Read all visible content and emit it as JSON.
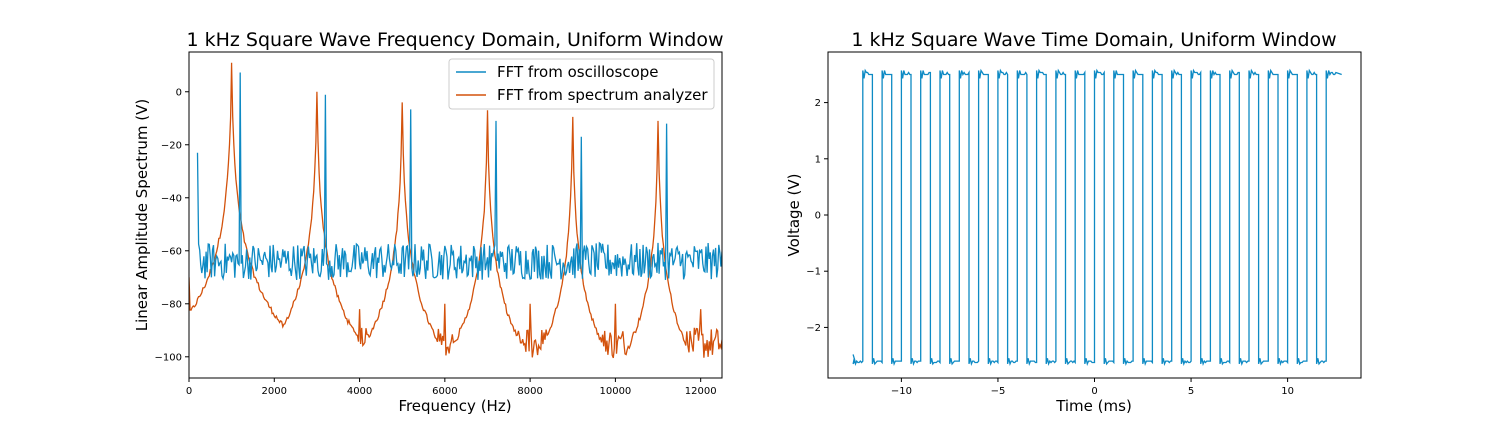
{
  "chart_data": [
    {
      "type": "line",
      "title": "1 kHz Square Wave Frequency Domain, Uniform Window",
      "xlabel": "Frequency (Hz)",
      "ylabel": "Linear Amplitude Spectrum (V)",
      "xlim": [
        0,
        12500
      ],
      "ylim": [
        -108,
        15
      ],
      "xticks": [
        0,
        2000,
        4000,
        6000,
        8000,
        10000,
        12000
      ],
      "yticks": [
        -100,
        -80,
        -60,
        -40,
        -20,
        0
      ],
      "grid": false,
      "legend_placement": "top-right",
      "series": [
        {
          "name": "FFT from oscilloscope",
          "color": "#0e8ac4",
          "noise_floor": -64,
          "x_start": 200,
          "start_value": -23,
          "peaks": [
            {
              "x": 1200,
              "y": 7
            },
            {
              "x": 3200,
              "y": -2
            },
            {
              "x": 5200,
              "y": -7
            },
            {
              "x": 7200,
              "y": -11
            },
            {
              "x": 9200,
              "y": -17
            },
            {
              "x": 11200,
              "y": -12
            }
          ]
        },
        {
          "name": "FFT from spectrum analyzer",
          "color": "#d3520c",
          "noise_floor": -95,
          "x_start": 0,
          "start_value": -70,
          "peaks": [
            {
              "x": 1000,
              "y": 10
            },
            {
              "x": 3000,
              "y": 0
            },
            {
              "x": 5000,
              "y": -4
            },
            {
              "x": 7000,
              "y": -7
            },
            {
              "x": 9000,
              "y": -10
            },
            {
              "x": 11000,
              "y": -11
            }
          ],
          "spurs": [
            {
              "x": 2000,
              "y": -92
            },
            {
              "x": 4000,
              "y": -82
            },
            {
              "x": 6000,
              "y": -80
            },
            {
              "x": 8000,
              "y": -80
            },
            {
              "x": 10000,
              "y": -80
            },
            {
              "x": 12000,
              "y": -82
            }
          ]
        }
      ]
    },
    {
      "type": "line",
      "title": "1 kHz Square Wave Time Domain, Uniform Window",
      "xlabel": "Time (ms)",
      "ylabel": "Voltage (V)",
      "xlim": [
        -13.8,
        13.8
      ],
      "ylim": [
        -2.9,
        2.9
      ],
      "xticks": [
        -10,
        -5,
        0,
        5,
        10
      ],
      "yticks": [
        -2,
        -1,
        0,
        1,
        2
      ],
      "grid": false,
      "series": [
        {
          "name": "",
          "color": "#0e8ac4",
          "period_ms": 1.0,
          "high_v": 2.5,
          "low_v": -2.6,
          "x_start": -12.5,
          "x_end": 12.5
        }
      ]
    }
  ]
}
